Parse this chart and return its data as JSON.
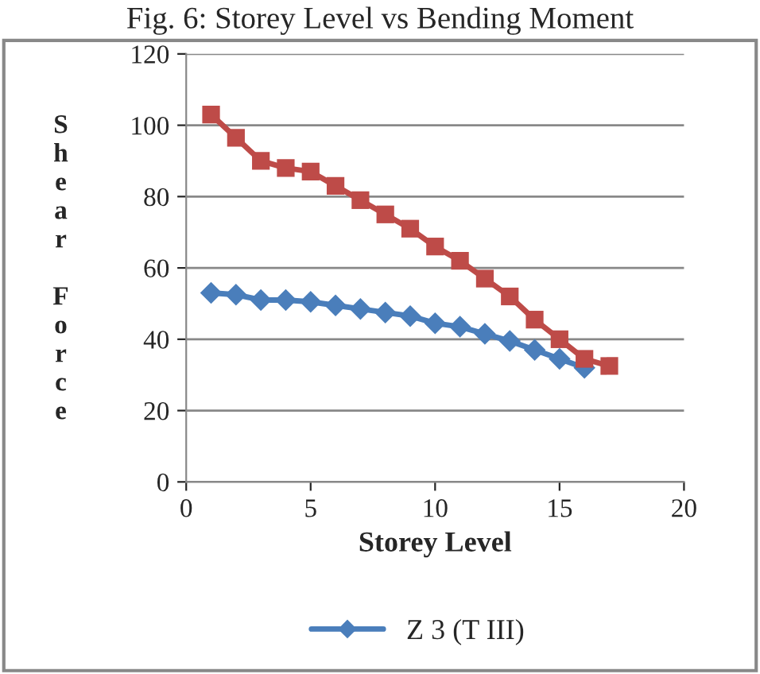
{
  "chart_data": {
    "type": "line",
    "title": "Fig. 6: Storey Level vs Bending Moment",
    "xlabel": "Storey Level",
    "ylabel": "Shear Force",
    "x": [
      1,
      2,
      3,
      4,
      5,
      6,
      7,
      8,
      9,
      10,
      11,
      12,
      13,
      14,
      15,
      16,
      17
    ],
    "series": [
      {
        "name": "Z 3 (T III)",
        "color": "#4a7ebb",
        "marker": "diamond",
        "values": [
          53,
          52.5,
          51,
          51,
          50.5,
          49.5,
          48.5,
          47.5,
          46.5,
          44.5,
          43.5,
          41.5,
          39.5,
          37,
          34.5,
          32,
          null
        ]
      },
      {
        "color": "#be4b48",
        "marker": "square",
        "values": [
          103,
          96.5,
          90,
          88,
          87,
          83,
          79,
          75,
          71,
          66,
          62,
          57,
          52,
          45.5,
          40,
          34.5,
          32.5
        ]
      }
    ],
    "xlim": [
      0,
      20
    ],
    "xticks": [
      0,
      5,
      10,
      15,
      20
    ],
    "ylim": [
      0,
      120
    ],
    "yticks": [
      0,
      20,
      40,
      60,
      80,
      100,
      120
    ],
    "grid": "y",
    "legend": "bottom",
    "line_style": "solid"
  }
}
